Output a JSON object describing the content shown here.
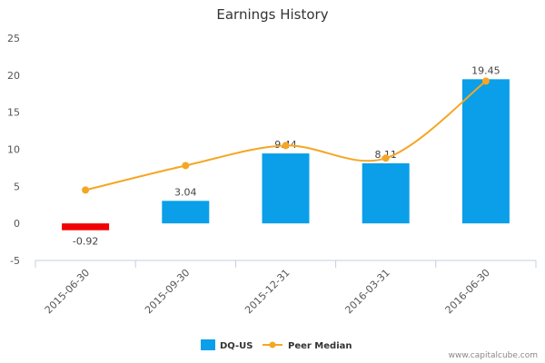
{
  "chart_data": {
    "type": "bar",
    "title": "Earnings History",
    "categories": [
      "2015-06-30",
      "2015-09-30",
      "2015-12-31",
      "2016-03-31",
      "2016-06-30"
    ],
    "series": [
      {
        "name": "DQ-US",
        "type": "bar",
        "values": [
          -0.92,
          3.04,
          9.44,
          8.11,
          19.45
        ],
        "color": "#0A9FE8",
        "negative_color": "#F00000"
      },
      {
        "name": "Peer Median",
        "type": "line",
        "values": [
          4.5,
          7.8,
          10.5,
          8.8,
          19.2
        ],
        "color": "#F5A623"
      }
    ],
    "data_labels": [
      "-0.92",
      "3.04",
      "9.44",
      "8.11",
      "19.45"
    ],
    "ylim": [
      -5,
      25
    ],
    "yticks": [
      -5,
      0,
      5,
      10,
      15,
      20,
      25
    ],
    "xlabel": "",
    "ylabel": "",
    "legend_position": "bottom-center",
    "grid": false
  },
  "watermark": "www.capitalcube.com"
}
